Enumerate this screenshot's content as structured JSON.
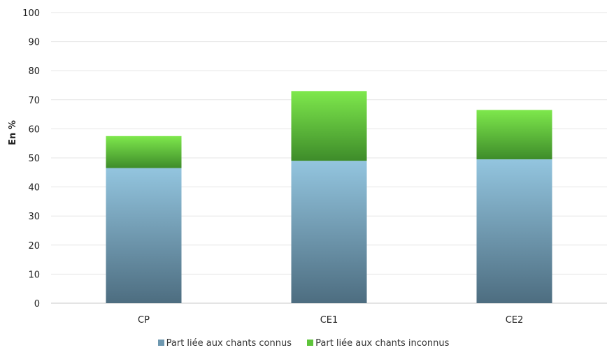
{
  "chart_data": {
    "type": "bar",
    "stacked": true,
    "categories": [
      "CP",
      "CE1",
      "CE2"
    ],
    "series": [
      {
        "name": "Part liée aux chants connus",
        "values": [
          46.5,
          49.0,
          49.5
        ],
        "color": "#7fa9c3"
      },
      {
        "name": "Part liée aux chants inconnus",
        "values": [
          11.0,
          24.0,
          17.0
        ],
        "color": "#6fd443"
      }
    ],
    "ylabel": "En %",
    "xlabel": "",
    "title": "",
    "ylim": [
      0,
      100
    ],
    "yticks": [
      0,
      10,
      20,
      30,
      40,
      50,
      60,
      70,
      80,
      90,
      100
    ],
    "grid": true,
    "legend_position": "bottom"
  }
}
